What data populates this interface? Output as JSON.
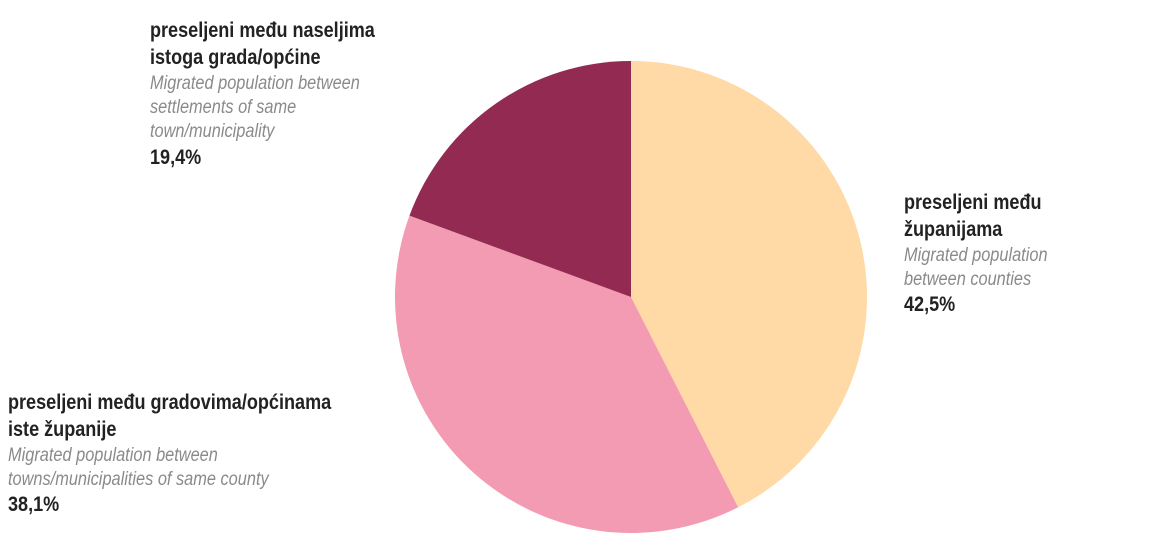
{
  "chart_data": {
    "type": "pie",
    "slices": [
      {
        "label_hr": "preseljeni među županijama",
        "label_en": "Migrated population between counties",
        "value": 42.5,
        "value_label": "42,5%",
        "color": "#ffd9a6"
      },
      {
        "label_hr": "preseljeni među gradovima/općinama iste županije",
        "label_en": "Migrated population between towns/municipalities of same county",
        "value": 38.1,
        "value_label": "38,1%",
        "color": "#f39bb2"
      },
      {
        "label_hr": "preseljeni među naseljima istoga grada/općine",
        "label_en": "Migrated population between settlements of same town/municipality",
        "value": 19.4,
        "value_label": "19,4%",
        "color": "#922a52"
      }
    ],
    "start": "top",
    "direction": "clockwise"
  },
  "labels": {
    "top_left": {
      "hr": "preseljeni među naseljima\nistoga grada/općine",
      "en": "Migrated population between\nsettlements of same\ntown/municipality",
      "pct": "19,4%"
    },
    "right": {
      "hr": "preseljeni među županijama",
      "en": "Migrated population\nbetween counties",
      "pct": "42,5%"
    },
    "bottom_left": {
      "hr": "preseljeni među gradovima/općinama\niste županije",
      "en": "Migrated population between\ntowns/municipalities of same county",
      "pct": "38,1%"
    }
  }
}
